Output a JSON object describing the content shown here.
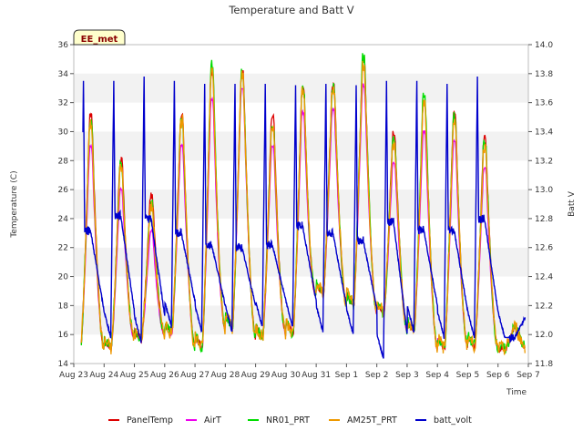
{
  "chart_data": {
    "type": "line",
    "title": "Temperature and Batt V",
    "station_tag": "EE_met",
    "xlabel": "Time",
    "ylabel_left": "Temperature (C)",
    "ylabel_right": "Batt V",
    "xlim": [
      0,
      15
    ],
    "ylim_left": [
      14,
      36
    ],
    "ylim_right": [
      11.8,
      14.0
    ],
    "x_tick_labels": [
      "Aug 23",
      "Aug 24",
      "Aug 25",
      "Aug 26",
      "Aug 27",
      "Aug 28",
      "Aug 29",
      "Aug 30",
      "Aug 31",
      "Sep 1",
      "Sep 2",
      "Sep 3",
      "Sep 4",
      "Sep 5",
      "Sep 6",
      "Sep 7"
    ],
    "y_ticks_left": [
      14,
      16,
      18,
      20,
      22,
      24,
      26,
      28,
      30,
      32,
      34,
      36
    ],
    "y_ticks_right": [
      "11.8",
      "12.0",
      "12.2",
      "12.4",
      "12.6",
      "12.8",
      "13.0",
      "13.2",
      "13.4",
      "13.6",
      "13.8",
      "14.0"
    ],
    "grid": "horizontal bands",
    "legend_position": "bottom",
    "daily_temperature": {
      "day_offsets": [
        0.0,
        1.0,
        2.0,
        3.0,
        4.0,
        5.0,
        6.0,
        7.0,
        8.0,
        9.0,
        10.0,
        11.0,
        12.0,
        13.0,
        14.0
      ],
      "min": [
        15.2,
        15.0,
        15.7,
        16.0,
        15.0,
        16.5,
        15.8,
        16.0,
        18.8,
        18.0,
        17.5,
        16.2,
        15.0,
        15.2,
        15.0
      ],
      "max_PanelTemp": [
        31.0,
        28.0,
        25.6,
        31.0,
        34.0,
        34.0,
        31.0,
        33.0,
        33.2,
        35.0,
        29.8,
        32.0,
        31.2,
        29.5,
        16.5
      ],
      "max_AirT": [
        29.0,
        26.0,
        23.2,
        29.0,
        32.2,
        33.0,
        29.0,
        31.3,
        31.5,
        33.2,
        27.8,
        30.0,
        29.3,
        27.5,
        16.5
      ],
      "max_NR01_PRT": [
        30.6,
        27.6,
        25.0,
        30.8,
        34.6,
        34.0,
        30.4,
        32.9,
        33.0,
        35.1,
        29.4,
        32.5,
        31.0,
        29.2,
        16.5
      ],
      "max_AM25T_PRT": [
        30.5,
        27.5,
        24.8,
        30.7,
        34.2,
        33.8,
        30.3,
        32.7,
        32.9,
        34.5,
        29.2,
        31.8,
        30.8,
        29.0,
        16.5
      ]
    },
    "daily_batt_volt": {
      "day_offsets": [
        0.0,
        1.0,
        2.0,
        3.0,
        4.0,
        5.0,
        6.0,
        7.0,
        8.0,
        9.0,
        10.0,
        11.0,
        12.0,
        13.0,
        14.0
      ],
      "min": [
        11.98,
        11.98,
        11.95,
        12.05,
        12.02,
        12.02,
        12.05,
        12.05,
        12.02,
        12.0,
        11.83,
        12.02,
        11.98,
        11.98,
        11.98
      ],
      "max": [
        13.75,
        13.75,
        13.78,
        13.75,
        13.73,
        13.73,
        13.73,
        13.72,
        13.73,
        13.72,
        13.75,
        13.75,
        13.73,
        13.78,
        11.98
      ],
      "plateau": [
        12.72,
        12.82,
        12.8,
        12.7,
        12.62,
        12.6,
        12.62,
        12.75,
        12.7,
        12.65,
        12.78,
        12.72,
        12.72,
        12.8,
        11.98
      ]
    },
    "series": [
      {
        "name": "PanelTemp",
        "color": "#dd0000",
        "axis": "left"
      },
      {
        "name": "AirT",
        "color": "#ee00ee",
        "axis": "left"
      },
      {
        "name": "NR01_PRT",
        "color": "#00dd00",
        "axis": "left"
      },
      {
        "name": "AM25T_PRT",
        "color": "#ee9900",
        "axis": "left"
      },
      {
        "name": "batt_volt",
        "color": "#0000cc",
        "axis": "right"
      }
    ]
  }
}
